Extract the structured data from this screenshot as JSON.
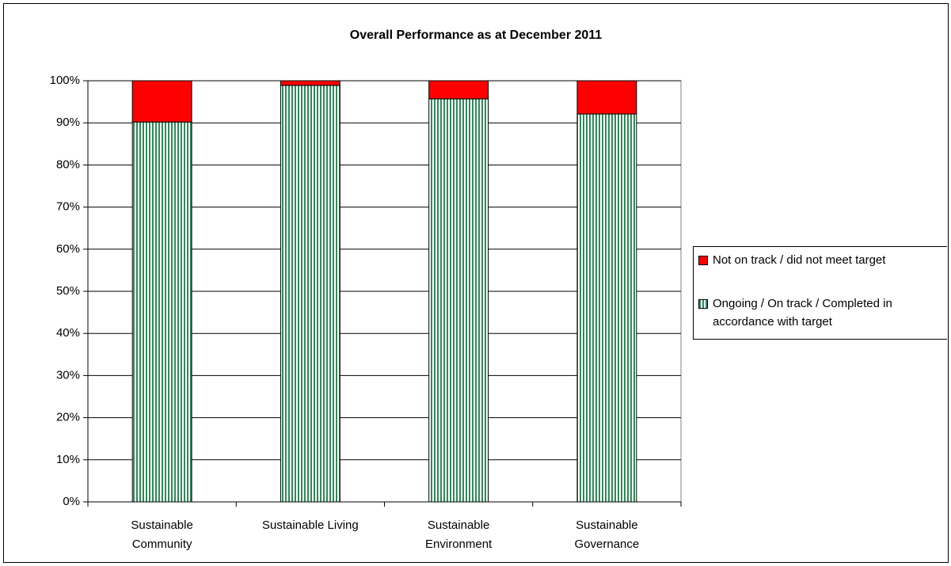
{
  "chart_data": {
    "type": "stacked_bar",
    "title": "Overall Performance as at December 2011",
    "categories": [
      "Sustainable Community",
      "Sustainable Living",
      "Sustainable Environment",
      "Sustainable Governance"
    ],
    "series": [
      {
        "name": "Ongoing / On track / Completed in accordance with target",
        "color": "#2e8b57",
        "values": [
          90.2,
          98.9,
          95.7,
          92.1
        ]
      },
      {
        "name": "Not on track / did not meet target",
        "color": "#ff0000",
        "values": [
          9.8,
          1.1,
          4.3,
          7.9
        ]
      }
    ],
    "ylim": [
      0,
      100
    ],
    "yticks": [
      {
        "value": 0,
        "label": "0%"
      },
      {
        "value": 10,
        "label": "10%"
      },
      {
        "value": 20,
        "label": "20%"
      },
      {
        "value": 30,
        "label": "30%"
      },
      {
        "value": 40,
        "label": "40%"
      },
      {
        "value": 50,
        "label": "50%"
      },
      {
        "value": 60,
        "label": "60%"
      },
      {
        "value": 70,
        "label": "70%"
      },
      {
        "value": 80,
        "label": "80%"
      },
      {
        "value": 90,
        "label": "90%"
      },
      {
        "value": 100,
        "label": "100%"
      }
    ],
    "grid": true,
    "legend": "right"
  }
}
